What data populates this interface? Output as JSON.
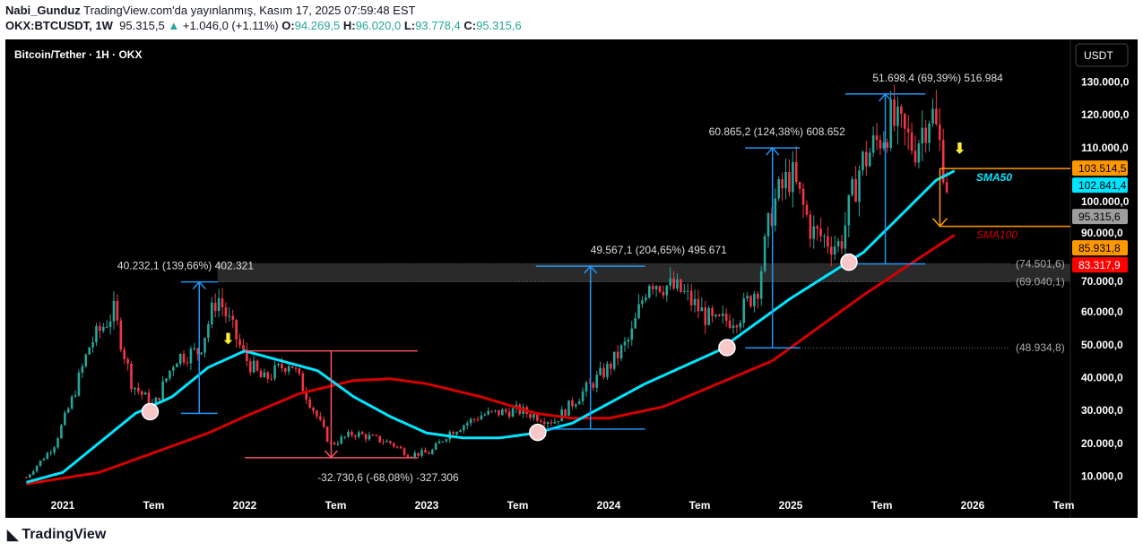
{
  "header": {
    "author": "Nabi_Gunduz",
    "published": "TradingView.com'da yayınlanmış, Kasım 17, 2025 07:59:48 EST",
    "symbol": "OKX:BTCUSDT, 1W",
    "last": "95.315,5",
    "change": "+1.046,0 (+1.11%)",
    "o_label": "O:",
    "o": "94.269,5",
    "h_label": "H:",
    "h": "96.020,0",
    "l_label": "L:",
    "l": "93.778,4",
    "c_label": "C:",
    "c": "95.315,6"
  },
  "chart": {
    "title": "Bitcoin/Tether · 1H · OKX",
    "currency": "USDT",
    "colors": {
      "up": "#26a69a",
      "down": "#f23645",
      "sma50": "#00e5ff",
      "sma100": "#d50000",
      "measure": "#2196f3",
      "short": "#f7525f",
      "orange": "#ff9800"
    }
  },
  "price_axis": [
    "130.000,0",
    "120.000,0",
    "110.000,0",
    "100.000,0",
    "90.000,0",
    "70.000,0",
    "60.000,0",
    "50.000,0",
    "40.000,0",
    "30.000,0",
    "20.000,0",
    "10.000,0"
  ],
  "price_axis_values": [
    130000,
    120000,
    110000,
    100000,
    90000,
    70000,
    60000,
    50000,
    40000,
    30000,
    20000,
    10000
  ],
  "price_tags": [
    {
      "text": "103.514,5",
      "value": 103514.5,
      "bg": "#ff9800",
      "fg": "#000"
    },
    {
      "text": "102.841,4",
      "value": 102841.4,
      "bg": "#00e5ff",
      "fg": "#000"
    },
    {
      "text": "95.315,6",
      "value": 95315.6,
      "bg": "#9e9e9e",
      "fg": "#000"
    },
    {
      "text": "85.931,8",
      "value": 85931.8,
      "bg": "#ff9800",
      "fg": "#000"
    },
    {
      "text": "83.317,9",
      "value": 83317.9,
      "bg": "#ff0000",
      "fg": "#fff"
    }
  ],
  "time_axis": [
    {
      "t": "2021",
      "x": 2021.0
    },
    {
      "t": "Tem",
      "x": 2021.5
    },
    {
      "t": "2022",
      "x": 2022.0
    },
    {
      "t": "Tem",
      "x": 2022.5
    },
    {
      "t": "2023",
      "x": 2023.0
    },
    {
      "t": "Tem",
      "x": 2023.5
    },
    {
      "t": "2024",
      "x": 2024.0
    },
    {
      "t": "Tem",
      "x": 2024.5
    },
    {
      "t": "2025",
      "x": 2025.0
    },
    {
      "t": "Tem",
      "x": 2025.5
    },
    {
      "t": "2026",
      "x": 2026.0
    },
    {
      "t": "Tem",
      "x": 2026.5
    }
  ],
  "levels": [
    {
      "text": "(74.501,6)",
      "value": 74501.6
    },
    {
      "text": "(69.040,1)",
      "value": 69040.1
    },
    {
      "text": "(48.934,8)",
      "value": 48934.8
    }
  ],
  "indicators": {
    "sma50": "SMA50",
    "sma100": "SMA100"
  },
  "measures": [
    {
      "text": "40.232,1 (139,66%) 402.321",
      "x0": 2021.65,
      "x1": 2021.85,
      "p0": 29000,
      "p1": 69000,
      "color": "#2196f3",
      "lx": 2021.3
    },
    {
      "text": "-32.730,6 (-68,08%) -327.306",
      "x0": 2022.0,
      "x1": 2022.95,
      "p0": 48000,
      "p1": 15500,
      "color": "#f7525f",
      "lx": 2022.4
    },
    {
      "text": "49.567,1 (204,65%) 495.671",
      "x0": 2023.6,
      "x1": 2024.2,
      "p0": 24200,
      "p1": 73800,
      "color": "#2196f3",
      "lx": 2023.9
    },
    {
      "text": "60.865,2 (124,38%) 608.652",
      "x0": 2024.75,
      "x1": 2025.05,
      "p0": 48934,
      "p1": 109800,
      "color": "#2196f3",
      "lx": 2024.55
    },
    {
      "text": "51.698,4 (69,39%) 516.984",
      "x0": 2025.3,
      "x1": 2025.74,
      "p0": 74500,
      "p1": 126200,
      "color": "#2196f3",
      "lx": 2025.45
    }
  ],
  "touch_points": [
    [
      2021.48,
      29500
    ],
    [
      2023.61,
      23200
    ],
    [
      2024.65,
      49000
    ],
    [
      2025.32,
      75000
    ]
  ],
  "chart_data": {
    "type": "candlestick",
    "price_path": [
      [
        2020.8,
        9500
      ],
      [
        2020.95,
        19000
      ],
      [
        2021.05,
        33000
      ],
      [
        2021.15,
        50000
      ],
      [
        2021.28,
        60000
      ],
      [
        2021.38,
        38000
      ],
      [
        2021.5,
        31000
      ],
      [
        2021.62,
        46000
      ],
      [
        2021.75,
        48000
      ],
      [
        2021.85,
        65000
      ],
      [
        2022.0,
        46000
      ],
      [
        2022.1,
        39000
      ],
      [
        2022.25,
        45000
      ],
      [
        2022.38,
        30000
      ],
      [
        2022.47,
        19500
      ],
      [
        2022.6,
        23000
      ],
      [
        2022.8,
        20000
      ],
      [
        2022.9,
        16500
      ],
      [
        2023.02,
        17000
      ],
      [
        2023.12,
        23000
      ],
      [
        2023.3,
        28500
      ],
      [
        2023.5,
        30000
      ],
      [
        2023.7,
        26500
      ],
      [
        2023.85,
        35000
      ],
      [
        2024.0,
        43000
      ],
      [
        2024.12,
        52000
      ],
      [
        2024.22,
        70000
      ],
      [
        2024.4,
        66000
      ],
      [
        2024.58,
        56000
      ],
      [
        2024.72,
        59000
      ],
      [
        2024.82,
        68000
      ],
      [
        2024.9,
        92000
      ],
      [
        2025.0,
        102000
      ],
      [
        2025.12,
        84000
      ],
      [
        2025.27,
        80000
      ],
      [
        2025.38,
        104000
      ],
      [
        2025.55,
        118000
      ],
      [
        2025.68,
        110000
      ],
      [
        2025.77,
        122000
      ],
      [
        2025.83,
        108000
      ],
      [
        2025.87,
        95300
      ]
    ],
    "sma50": [
      [
        2020.8,
        8000
      ],
      [
        2021.0,
        11000
      ],
      [
        2021.2,
        20000
      ],
      [
        2021.4,
        29000
      ],
      [
        2021.6,
        34000
      ],
      [
        2021.8,
        43000
      ],
      [
        2022.0,
        48000
      ],
      [
        2022.2,
        45000
      ],
      [
        2022.4,
        42000
      ],
      [
        2022.6,
        34000
      ],
      [
        2022.8,
        28000
      ],
      [
        2023.0,
        23000
      ],
      [
        2023.2,
        21500
      ],
      [
        2023.4,
        21500
      ],
      [
        2023.6,
        23000
      ],
      [
        2023.8,
        26000
      ],
      [
        2024.0,
        32000
      ],
      [
        2024.2,
        38000
      ],
      [
        2024.4,
        43000
      ],
      [
        2024.6,
        48000
      ],
      [
        2024.8,
        56000
      ],
      [
        2025.0,
        64000
      ],
      [
        2025.2,
        71000
      ],
      [
        2025.4,
        78000
      ],
      [
        2025.6,
        89000
      ],
      [
        2025.8,
        100000
      ],
      [
        2025.9,
        102800
      ]
    ],
    "sma100": [
      [
        2020.8,
        7500
      ],
      [
        2021.2,
        11000
      ],
      [
        2021.5,
        17000
      ],
      [
        2021.8,
        23000
      ],
      [
        2022.0,
        28000
      ],
      [
        2022.3,
        35000
      ],
      [
        2022.6,
        39000
      ],
      [
        2022.8,
        39500
      ],
      [
        2023.0,
        38000
      ],
      [
        2023.3,
        34000
      ],
      [
        2023.6,
        29000
      ],
      [
        2023.8,
        27500
      ],
      [
        2024.0,
        27500
      ],
      [
        2024.3,
        31000
      ],
      [
        2024.6,
        38000
      ],
      [
        2024.9,
        45000
      ],
      [
        2025.1,
        53000
      ],
      [
        2025.4,
        65000
      ],
      [
        2025.7,
        76000
      ],
      [
        2025.9,
        83300
      ]
    ]
  }
}
